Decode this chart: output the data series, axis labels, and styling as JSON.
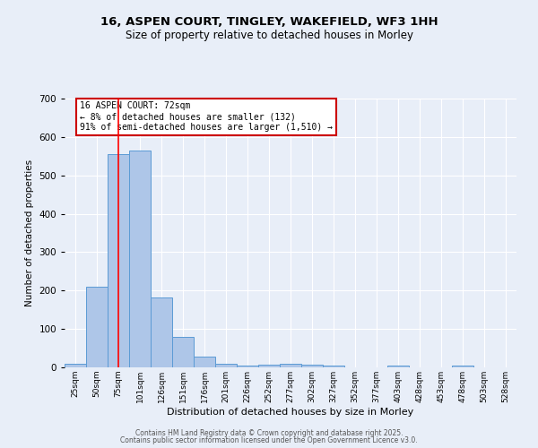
{
  "title_line1": "16, ASPEN COURT, TINGLEY, WAKEFIELD, WF3 1HH",
  "title_line2": "Size of property relative to detached houses in Morley",
  "xlabel": "Distribution of detached houses by size in Morley",
  "ylabel": "Number of detached properties",
  "categories": [
    "25sqm",
    "50sqm",
    "75sqm",
    "101sqm",
    "126sqm",
    "151sqm",
    "176sqm",
    "201sqm",
    "226sqm",
    "252sqm",
    "277sqm",
    "302sqm",
    "327sqm",
    "352sqm",
    "377sqm",
    "403sqm",
    "428sqm",
    "453sqm",
    "478sqm",
    "503sqm",
    "528sqm"
  ],
  "values": [
    10,
    210,
    555,
    565,
    182,
    80,
    27,
    10,
    5,
    8,
    10,
    7,
    5,
    0,
    0,
    5,
    0,
    0,
    5,
    0,
    0
  ],
  "bar_color": "#aec6e8",
  "bar_edge_color": "#5b9bd5",
  "background_color": "#e8eef8",
  "grid_color": "#ffffff",
  "red_line_x": 2,
  "annotation_text": "16 ASPEN COURT: 72sqm\n← 8% of detached houses are smaller (132)\n91% of semi-detached houses are larger (1,510) →",
  "annotation_box_color": "#ffffff",
  "annotation_box_edge": "#cc0000",
  "ylim": [
    0,
    700
  ],
  "yticks": [
    0,
    100,
    200,
    300,
    400,
    500,
    600,
    700
  ],
  "footer_line1": "Contains HM Land Registry data © Crown copyright and database right 2025.",
  "footer_line2": "Contains public sector information licensed under the Open Government Licence v3.0."
}
